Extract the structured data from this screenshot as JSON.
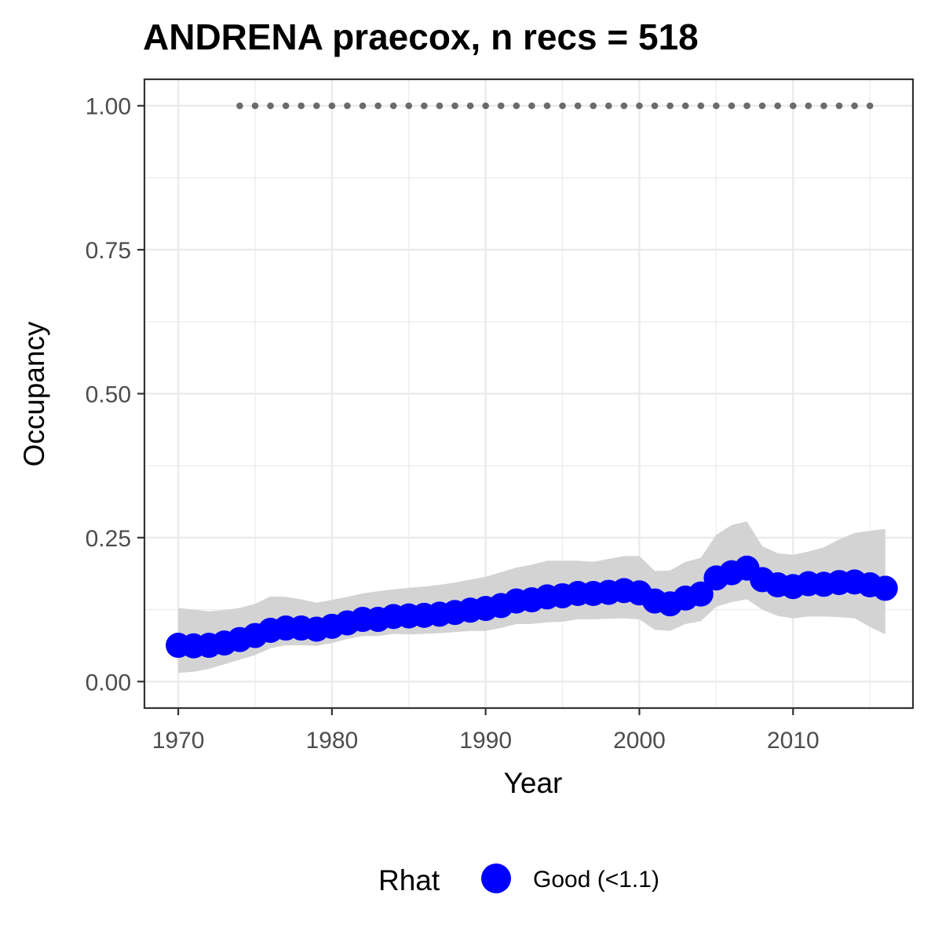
{
  "chart_data": {
    "type": "line",
    "title": "ANDRENA praecox, n recs = 518",
    "xlabel": "Year",
    "ylabel": "Occupancy",
    "xlim": [
      1967.8,
      2017.8
    ],
    "ylim": [
      -0.046,
      1.046
    ],
    "x_ticks": [
      1970,
      1980,
      1990,
      2000,
      2010
    ],
    "x_tick_labels": [
      "1970",
      "1980",
      "1990",
      "2000",
      "2010"
    ],
    "y_ticks": [
      0.0,
      0.25,
      0.5,
      0.75,
      1.0
    ],
    "y_tick_labels": [
      "0.00",
      "0.25",
      "0.50",
      "0.75",
      "1.00"
    ],
    "grid": true,
    "legend": {
      "title": "Rhat",
      "placement": "bottom",
      "entries": [
        {
          "label": "Good (<1.1)",
          "color": "#0000ff"
        }
      ]
    },
    "colors": {
      "mean": "#0000ff",
      "ci_band": "#d3d3d3",
      "record_dots": "#6b6b6b",
      "panel_border": "#333333",
      "grid": "#ebebeb"
    },
    "series": [
      {
        "name": "Good (<1.1)",
        "x": [
          1970,
          1971,
          1972,
          1973,
          1974,
          1975,
          1976,
          1977,
          1978,
          1979,
          1980,
          1981,
          1982,
          1983,
          1984,
          1985,
          1986,
          1987,
          1988,
          1989,
          1990,
          1991,
          1992,
          1993,
          1994,
          1995,
          1996,
          1997,
          1998,
          1999,
          2000,
          2001,
          2002,
          2003,
          2004,
          2005,
          2006,
          2007,
          2008,
          2009,
          2010,
          2011,
          2012,
          2013,
          2014,
          2015,
          2016
        ],
        "y": [
          0.063,
          0.062,
          0.063,
          0.067,
          0.073,
          0.08,
          0.089,
          0.093,
          0.093,
          0.091,
          0.096,
          0.102,
          0.108,
          0.108,
          0.113,
          0.114,
          0.115,
          0.117,
          0.12,
          0.124,
          0.127,
          0.132,
          0.14,
          0.142,
          0.147,
          0.149,
          0.153,
          0.153,
          0.155,
          0.158,
          0.154,
          0.14,
          0.135,
          0.145,
          0.152,
          0.18,
          0.189,
          0.197,
          0.177,
          0.168,
          0.165,
          0.17,
          0.169,
          0.172,
          0.173,
          0.168,
          0.162
        ],
        "lower": [
          0.015,
          0.017,
          0.022,
          0.03,
          0.038,
          0.046,
          0.058,
          0.063,
          0.063,
          0.062,
          0.067,
          0.074,
          0.079,
          0.079,
          0.083,
          0.082,
          0.083,
          0.084,
          0.086,
          0.088,
          0.088,
          0.093,
          0.1,
          0.1,
          0.103,
          0.104,
          0.108,
          0.108,
          0.109,
          0.11,
          0.108,
          0.09,
          0.088,
          0.1,
          0.105,
          0.13,
          0.138,
          0.143,
          0.125,
          0.114,
          0.11,
          0.113,
          0.113,
          0.112,
          0.11,
          0.095,
          0.082
        ],
        "upper": [
          0.128,
          0.125,
          0.122,
          0.124,
          0.128,
          0.135,
          0.148,
          0.147,
          0.143,
          0.137,
          0.142,
          0.147,
          0.153,
          0.157,
          0.16,
          0.163,
          0.165,
          0.168,
          0.172,
          0.177,
          0.182,
          0.19,
          0.198,
          0.203,
          0.21,
          0.21,
          0.21,
          0.208,
          0.213,
          0.218,
          0.218,
          0.192,
          0.193,
          0.208,
          0.215,
          0.255,
          0.272,
          0.278,
          0.235,
          0.223,
          0.22,
          0.226,
          0.233,
          0.247,
          0.258,
          0.262,
          0.265
        ]
      }
    ],
    "record_years": [
      1974,
      1975,
      1976,
      1977,
      1978,
      1979,
      1980,
      1981,
      1982,
      1983,
      1984,
      1985,
      1986,
      1987,
      1988,
      1989,
      1990,
      1991,
      1992,
      1993,
      1994,
      1995,
      1996,
      1997,
      1998,
      1999,
      2000,
      2001,
      2002,
      2003,
      2004,
      2005,
      2006,
      2007,
      2008,
      2009,
      2010,
      2011,
      2012,
      2013,
      2014,
      2015
    ],
    "record_level": 1.0
  }
}
